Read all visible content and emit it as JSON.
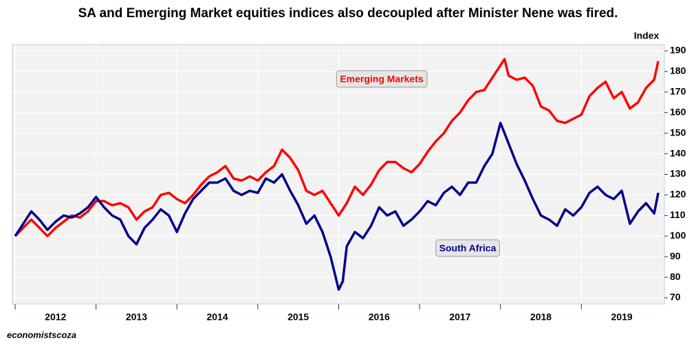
{
  "chart_data": {
    "type": "line",
    "title": "SA and Emerging Market equities indices also decoupled after Minister Nene was fired.",
    "y_label": "Index",
    "source": "economistscoza",
    "x": [
      2012.0,
      2012.1,
      2012.2,
      2012.3,
      2012.4,
      2012.5,
      2012.6,
      2012.7,
      2012.8,
      2012.9,
      2013.0,
      2013.1,
      2013.2,
      2013.3,
      2013.4,
      2013.5,
      2013.6,
      2013.7,
      2013.8,
      2013.9,
      2014.0,
      2014.1,
      2014.2,
      2014.3,
      2014.4,
      2014.5,
      2014.6,
      2014.7,
      2014.8,
      2014.9,
      2015.0,
      2015.1,
      2015.2,
      2015.3,
      2015.4,
      2015.5,
      2015.6,
      2015.7,
      2015.8,
      2015.9,
      2016.0,
      2016.05,
      2016.1,
      2016.2,
      2016.3,
      2016.4,
      2016.5,
      2016.6,
      2016.7,
      2016.8,
      2016.9,
      2017.0,
      2017.1,
      2017.2,
      2017.3,
      2017.4,
      2017.5,
      2017.6,
      2017.7,
      2017.8,
      2017.9,
      2018.0,
      2018.05,
      2018.1,
      2018.2,
      2018.3,
      2018.4,
      2018.5,
      2018.6,
      2018.7,
      2018.8,
      2018.9,
      2019.0,
      2019.1,
      2019.2,
      2019.3,
      2019.4,
      2019.5,
      2019.6,
      2019.7,
      2019.8,
      2019.9,
      2019.95
    ],
    "series": [
      {
        "name": "Emerging Markets",
        "color": "#ff0000",
        "values": [
          100,
          104,
          108,
          104,
          100,
          104,
          107,
          110,
          109,
          112,
          117,
          117,
          115,
          116,
          114,
          108,
          112,
          114,
          120,
          121,
          118,
          116,
          120,
          125,
          129,
          131,
          134,
          128,
          127,
          129,
          127,
          131,
          134,
          142,
          138,
          132,
          122,
          120,
          122,
          116,
          110,
          113,
          116,
          124,
          120,
          125,
          132,
          136,
          136,
          133,
          131,
          135,
          141,
          146,
          150,
          156,
          160,
          166,
          170,
          171,
          177,
          183,
          186,
          178,
          176,
          177,
          173,
          163,
          161,
          156,
          155,
          157,
          159,
          168,
          172,
          175,
          167,
          170,
          162,
          165,
          172,
          176,
          185
        ]
      },
      {
        "name": "South Africa",
        "color": "#00008b",
        "values": [
          100,
          106,
          112,
          108,
          103,
          107,
          110,
          109,
          111,
          114,
          119,
          114,
          110,
          108,
          100,
          96,
          104,
          108,
          113,
          110,
          102,
          111,
          118,
          122,
          126,
          126,
          128,
          122,
          120,
          122,
          121,
          128,
          126,
          130,
          122,
          115,
          106,
          110,
          102,
          90,
          74,
          78,
          95,
          102,
          99,
          105,
          114,
          110,
          112,
          105,
          108,
          112,
          117,
          115,
          121,
          124,
          120,
          126,
          126,
          134,
          140,
          155,
          150,
          145,
          135,
          127,
          118,
          110,
          108,
          105,
          113,
          110,
          114,
          121,
          124,
          120,
          118,
          122,
          106,
          112,
          116,
          111,
          121
        ]
      }
    ],
    "xlim": [
      2011.966,
      2020.026
    ],
    "xticks": [
      {
        "value": 2012,
        "label": "2012"
      },
      {
        "value": 2013,
        "label": "2013"
      },
      {
        "value": 2014,
        "label": "2014"
      },
      {
        "value": 2015,
        "label": "2015"
      },
      {
        "value": 2016,
        "label": "2016"
      },
      {
        "value": 2017,
        "label": "2017"
      },
      {
        "value": 2018,
        "label": "2018"
      },
      {
        "value": 2019,
        "label": "2019"
      }
    ],
    "ylim": [
      67,
      193
    ],
    "yticks": [
      70,
      80,
      90,
      100,
      110,
      120,
      130,
      140,
      150,
      160,
      170,
      180,
      190
    ],
    "grid": true
  }
}
